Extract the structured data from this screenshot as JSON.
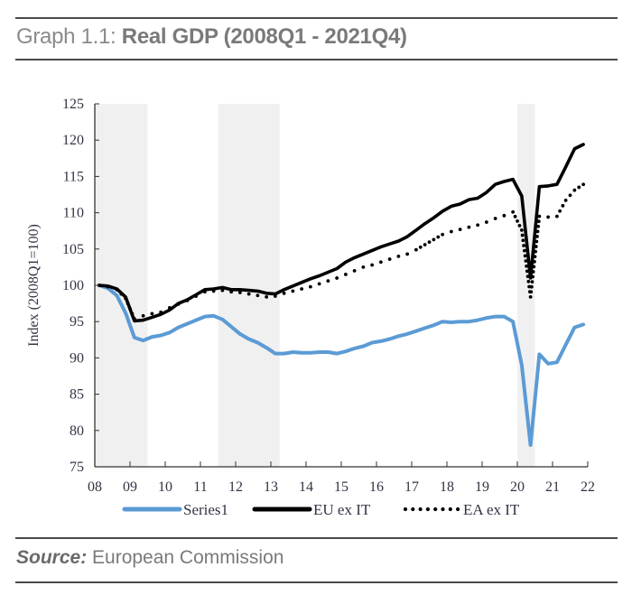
{
  "header": {
    "prefix": "Graph 1.1: ",
    "title": "Real GDP (2008Q1 - 2021Q4)"
  },
  "footer": {
    "source_label": "Source:",
    "source_text": " European Commission"
  },
  "colors": {
    "series1": "#5b9bd5",
    "eu_ex_it": "#000000",
    "ea_ex_it": "#000000",
    "shading": "#f0f0f0",
    "axis": "#333333"
  },
  "chart_data": {
    "type": "line",
    "title": "Real GDP (2008Q1 - 2021Q4)",
    "xlabel": "",
    "ylabel": "Index (2008Q1=100)",
    "ylim": [
      75,
      125
    ],
    "yticks": [
      75,
      80,
      85,
      90,
      95,
      100,
      105,
      110,
      115,
      120,
      125
    ],
    "xlim": [
      2008.0,
      2022.0
    ],
    "xticks": [
      {
        "value": 2008,
        "label": "08"
      },
      {
        "value": 2009,
        "label": "09"
      },
      {
        "value": 2010,
        "label": "10"
      },
      {
        "value": 2011,
        "label": "11"
      },
      {
        "value": 2012,
        "label": "12"
      },
      {
        "value": 2013,
        "label": "13"
      },
      {
        "value": 2014,
        "label": "14"
      },
      {
        "value": 2015,
        "label": "15"
      },
      {
        "value": 2016,
        "label": "16"
      },
      {
        "value": 2017,
        "label": "17"
      },
      {
        "value": 2018,
        "label": "18"
      },
      {
        "value": 2019,
        "label": "19"
      },
      {
        "value": 2020,
        "label": "20"
      },
      {
        "value": 2021,
        "label": "21"
      },
      {
        "value": 2022,
        "label": "22"
      }
    ],
    "grid": false,
    "legend_position": "bottom",
    "shaded_periods": [
      {
        "from": "2008Q1",
        "to": "2009Q2"
      },
      {
        "from": "2011Q3",
        "to": "2013Q1"
      },
      {
        "from": "2020Q1",
        "to": "2020Q2"
      }
    ],
    "x": [
      "2008Q1",
      "2008Q2",
      "2008Q3",
      "2008Q4",
      "2009Q1",
      "2009Q2",
      "2009Q3",
      "2009Q4",
      "2010Q1",
      "2010Q2",
      "2010Q3",
      "2010Q4",
      "2011Q1",
      "2011Q2",
      "2011Q3",
      "2011Q4",
      "2012Q1",
      "2012Q2",
      "2012Q3",
      "2012Q4",
      "2013Q1",
      "2013Q2",
      "2013Q3",
      "2013Q4",
      "2014Q1",
      "2014Q2",
      "2014Q3",
      "2014Q4",
      "2015Q1",
      "2015Q2",
      "2015Q3",
      "2015Q4",
      "2016Q1",
      "2016Q2",
      "2016Q3",
      "2016Q4",
      "2017Q1",
      "2017Q2",
      "2017Q3",
      "2017Q4",
      "2018Q1",
      "2018Q2",
      "2018Q3",
      "2018Q4",
      "2019Q1",
      "2019Q2",
      "2019Q3",
      "2019Q4",
      "2020Q1",
      "2020Q2",
      "2020Q3",
      "2020Q4",
      "2021Q1",
      "2021Q2",
      "2021Q3",
      "2021Q4"
    ],
    "series": [
      {
        "name": "Series1",
        "style": "solid-thick",
        "values": [
          100.0,
          99.6,
          98.6,
          96.2,
          92.8,
          92.4,
          92.9,
          93.1,
          93.5,
          94.2,
          94.7,
          95.2,
          95.7,
          95.8,
          95.3,
          94.3,
          93.3,
          92.6,
          92.1,
          91.4,
          90.6,
          90.6,
          90.8,
          90.7,
          90.7,
          90.8,
          90.8,
          90.6,
          90.9,
          91.3,
          91.6,
          92.1,
          92.3,
          92.6,
          93.0,
          93.3,
          93.7,
          94.1,
          94.5,
          95.0,
          94.9,
          95.0,
          95.0,
          95.2,
          95.5,
          95.7,
          95.7,
          95.0,
          89.0,
          78.0,
          90.5,
          89.2,
          89.4,
          91.8,
          94.2,
          94.6
        ]
      },
      {
        "name": "EU ex IT",
        "style": "solid-black",
        "values": [
          100.0,
          99.9,
          99.5,
          98.4,
          95.1,
          95.2,
          95.6,
          96.0,
          96.6,
          97.5,
          98.0,
          98.7,
          99.4,
          99.5,
          99.7,
          99.4,
          99.4,
          99.3,
          99.2,
          98.9,
          98.8,
          99.4,
          99.9,
          100.4,
          100.9,
          101.3,
          101.8,
          102.3,
          103.2,
          103.8,
          104.3,
          104.8,
          105.3,
          105.7,
          106.1,
          106.7,
          107.6,
          108.5,
          109.3,
          110.2,
          110.9,
          111.2,
          111.8,
          112.0,
          112.8,
          113.9,
          114.3,
          114.6,
          112.3,
          101.0,
          113.6,
          113.7,
          113.9,
          116.3,
          118.8,
          119.4
        ]
      },
      {
        "name": "EA ex IT",
        "style": "dotted-black",
        "values": [
          100.0,
          99.8,
          99.4,
          98.2,
          95.4,
          95.8,
          96.1,
          96.3,
          96.9,
          97.4,
          97.9,
          98.5,
          99.1,
          99.2,
          99.3,
          99.1,
          99.0,
          98.8,
          98.6,
          98.4,
          98.5,
          98.9,
          99.2,
          99.5,
          99.8,
          100.2,
          100.6,
          101.0,
          101.5,
          102.0,
          102.5,
          102.8,
          103.2,
          103.6,
          104.0,
          104.3,
          104.9,
          105.6,
          106.3,
          107.0,
          107.4,
          107.7,
          108.0,
          108.3,
          108.7,
          109.2,
          109.6,
          110.1,
          107.6,
          98.4,
          109.5,
          109.4,
          109.5,
          111.7,
          113.1,
          113.9
        ]
      }
    ]
  }
}
